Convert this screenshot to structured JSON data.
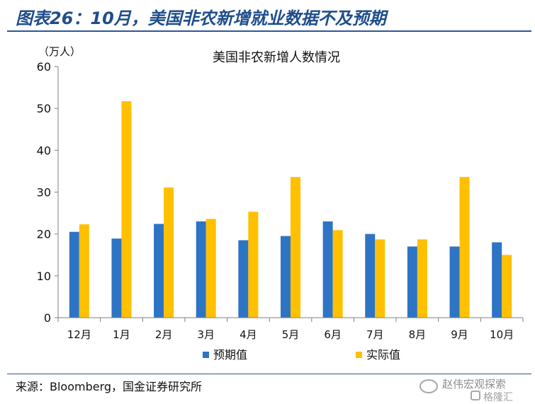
{
  "figure": {
    "title": "图表26：10月，美国非农新增就业数据不及预期",
    "source": "来源：Bloomberg，国金证券研究所"
  },
  "watermark": {
    "line1": "赵伟宏观探索",
    "line2": "格隆汇"
  },
  "colors": {
    "expected": "#2e74c4",
    "actual": "#ffc000",
    "header": "#1f4e8c"
  },
  "chart_data": {
    "type": "bar",
    "title": "美国非农新增人数情况",
    "unit": "（万人）",
    "categories": [
      "12月",
      "1月",
      "2月",
      "3月",
      "4月",
      "5月",
      "6月",
      "7月",
      "8月",
      "9月",
      "10月"
    ],
    "series": [
      {
        "name": "预期值",
        "values": [
          20.5,
          18.9,
          22.4,
          23.0,
          18.5,
          19.5,
          23.0,
          20.0,
          17.0,
          17.0,
          18.0
        ]
      },
      {
        "name": "实际值",
        "values": [
          22.3,
          51.7,
          31.1,
          23.6,
          25.3,
          33.6,
          20.9,
          18.7,
          18.7,
          33.6,
          15.0
        ]
      }
    ],
    "ylim": [
      0,
      60
    ],
    "yticks": [
      0,
      10,
      20,
      30,
      40,
      50,
      60
    ],
    "grid": false,
    "legend": "bottom"
  }
}
